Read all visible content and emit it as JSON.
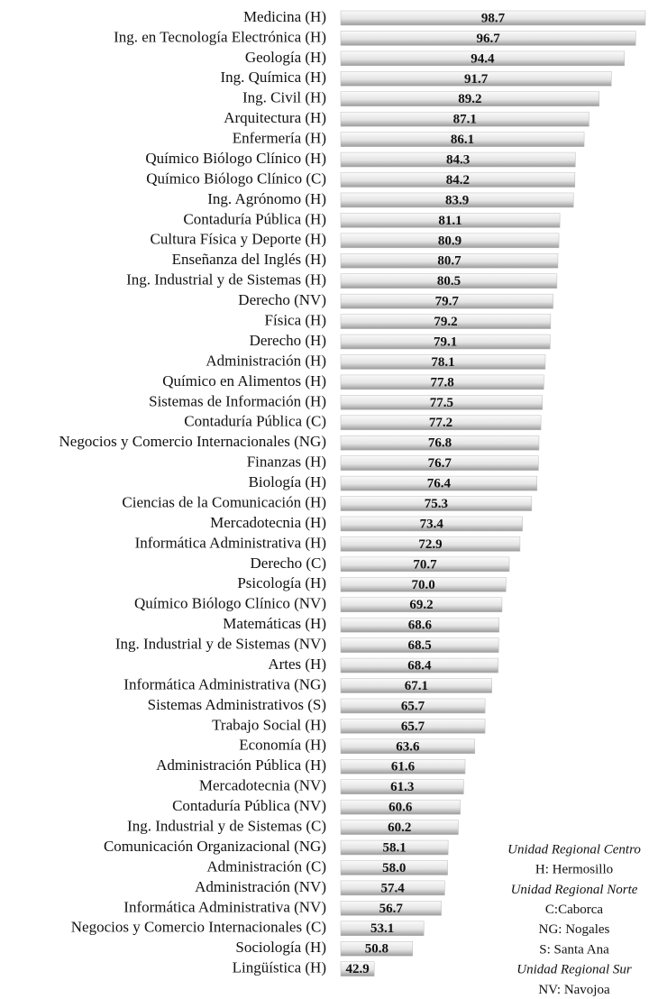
{
  "chart_data": {
    "type": "barh",
    "categories": [
      "Medicina (H)",
      "Ing. en Tecnología Electrónica (H)",
      "Geología (H)",
      "Ing. Química (H)",
      "Ing. Civil (H)",
      "Arquitectura (H)",
      "Enfermería (H)",
      "Químico Biólogo Clínico (H)",
      "Químico Biólogo Clínico (C)",
      "Ing. Agrónomo (H)",
      "Contaduría Pública (H)",
      "Cultura Física y Deporte (H)",
      "Enseñanza del Inglés (H)",
      "Ing. Industrial y de Sistemas (H)",
      "Derecho (NV)",
      "Física (H)",
      "Derecho (H)",
      "Administración (H)",
      "Químico en Alimentos (H)",
      "Sistemas de Información (H)",
      "Contaduría Pública (C)",
      "Negocios y Comercio Internacionales (NG)",
      "Finanzas (H)",
      "Biología (H)",
      "Ciencias de la Comunicación (H)",
      "Mercadotecnia (H)",
      "Informática Administrativa (H)",
      "Derecho (C)",
      "Psicología (H)",
      "Químico Biólogo Clínico (NV)",
      "Matemáticas (H)",
      "Ing. Industrial y de Sistemas (NV)",
      "Artes (H)",
      "Informática Administrativa (NG)",
      "Sistemas Administrativos (S)",
      "Trabajo Social (H)",
      "Economía (H)",
      "Administración Pública (H)",
      "Mercadotecnia (NV)",
      "Contaduría Pública (NV)",
      "Ing. Industrial y de Sistemas (C)",
      "Comunicación Organizacional (NG)",
      "Administración (C)",
      "Administración (NV)",
      "Informática Administrativa (NV)",
      "Negocios y Comercio Internacionales (C)",
      "Sociología (H)",
      "Lingüística (H)"
    ],
    "values": [
      98.7,
      96.7,
      94.4,
      91.7,
      89.2,
      87.1,
      86.1,
      84.3,
      84.2,
      83.9,
      81.1,
      80.9,
      80.7,
      80.5,
      79.7,
      79.2,
      79.1,
      78.1,
      77.8,
      77.5,
      77.2,
      76.8,
      76.7,
      76.4,
      75.3,
      73.4,
      72.9,
      70.7,
      70.0,
      69.2,
      68.6,
      68.5,
      68.4,
      67.1,
      65.7,
      65.7,
      63.6,
      61.6,
      61.3,
      60.6,
      60.2,
      58.1,
      58.0,
      57.4,
      56.7,
      53.1,
      50.8,
      42.9
    ],
    "value_labels": [
      "98.7",
      "96.7",
      "94.4",
      "91.7",
      "89.2",
      "87.1",
      "86.1",
      "84.3",
      "84.2",
      "83.9",
      "81.1",
      "80.9",
      "80.7",
      "80.5",
      "79.7",
      "79.2",
      "79.1",
      "78.1",
      "77.8",
      "77.5",
      "77.2",
      "76.8",
      "76.7",
      "76.4",
      "75.3",
      "73.4",
      "72.9",
      "70.7",
      "70.0",
      "69.2",
      "68.6",
      "68.5",
      "68.4",
      "67.1",
      "65.7",
      "65.7",
      "63.6",
      "61.6",
      "61.3",
      "60.6",
      "60.2",
      "58.1",
      "58.0",
      "57.4",
      "56.7",
      "53.1",
      "50.8",
      "42.9"
    ],
    "xlim": [
      36,
      100
    ],
    "notes": [
      {
        "text": "Unidad Regional Centro",
        "style": "italic"
      },
      {
        "text": "H: Hermosillo",
        "style": "normal"
      },
      {
        "text": "Unidad Regional Norte",
        "style": "italic"
      },
      {
        "text": "C:Caborca",
        "style": "normal"
      },
      {
        "text": "NG: Nogales",
        "style": "normal"
      },
      {
        "text": "S: Santa Ana",
        "style": "normal"
      },
      {
        "text": "Unidad Regional Sur",
        "style": "italic"
      },
      {
        "text": "NV: Navojoa",
        "style": "normal"
      }
    ]
  }
}
